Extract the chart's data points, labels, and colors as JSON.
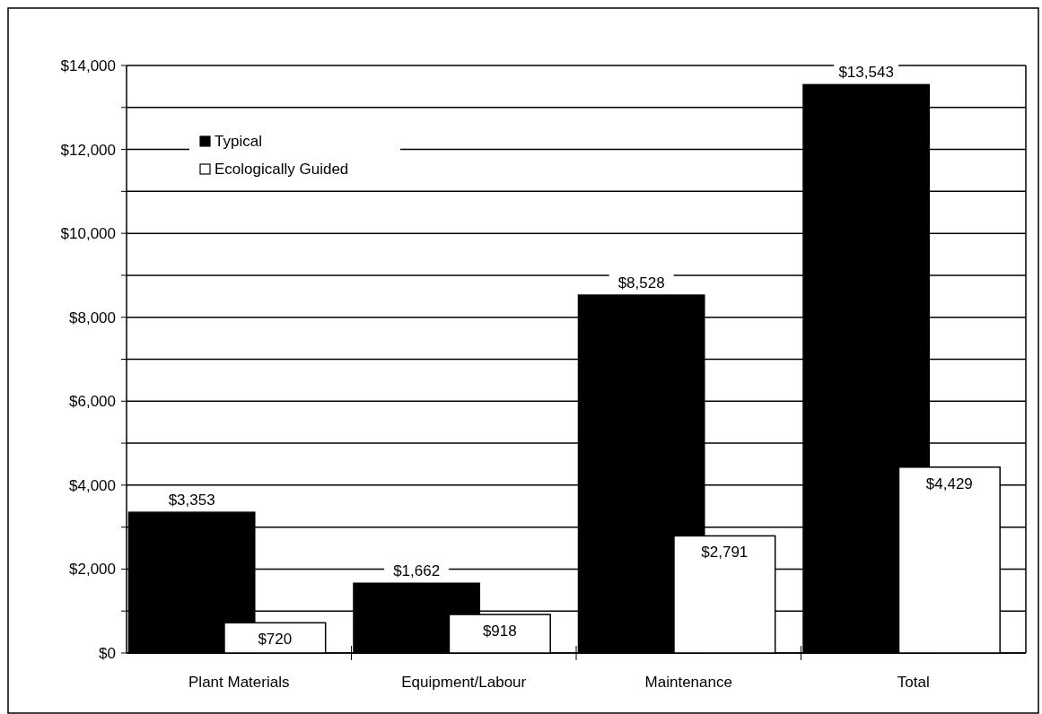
{
  "chart_data": {
    "type": "bar",
    "categories": [
      "Plant Materials",
      "Equipment/Labour",
      "Maintenance",
      "Total"
    ],
    "series": [
      {
        "name": "Typical",
        "color": "#000000",
        "values": [
          3353,
          1662,
          8528,
          13543
        ],
        "value_labels": [
          "$3,353",
          "$1,662",
          "$8,528",
          "$13,543"
        ]
      },
      {
        "name": "Ecologically Guided",
        "color": "#ffffff",
        "values": [
          720,
          918,
          2791,
          4429
        ],
        "value_labels": [
          "$720",
          "$918",
          "$2,791",
          "$4,429"
        ]
      }
    ],
    "ylim": [
      0,
      14000
    ],
    "yticks": [
      {
        "value": 0,
        "label": "$0"
      },
      {
        "value": 1000,
        "label": null
      },
      {
        "value": 2000,
        "label": "$2,000"
      },
      {
        "value": 3000,
        "label": null
      },
      {
        "value": 4000,
        "label": "$4,000"
      },
      {
        "value": 5000,
        "label": null
      },
      {
        "value": 6000,
        "label": "$6,000"
      },
      {
        "value": 7000,
        "label": null
      },
      {
        "value": 8000,
        "label": "$8,000"
      },
      {
        "value": 9000,
        "label": null
      },
      {
        "value": 10000,
        "label": "$10,000"
      },
      {
        "value": 11000,
        "label": null
      },
      {
        "value": 12000,
        "label": "$12,000"
      },
      {
        "value": 13000,
        "label": null
      },
      {
        "value": 14000,
        "label": "$14,000"
      }
    ],
    "grid": "y",
    "legend": "top left"
  }
}
